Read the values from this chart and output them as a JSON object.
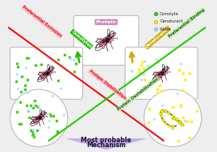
{
  "bg_color": "#eeeeee",
  "osmolyte_color": "#33cc00",
  "denaturant_color": "#ffee00",
  "water_color": "#99ddff",
  "protein_color1": "#111111",
  "protein_color2": "#cc2222",
  "protein_color3": "#ee66aa",
  "legend_osmolyte": "Osmolyte",
  "legend_denaturant": "Denaturant",
  "legend_water": "Water",
  "bottom_text1": "Most probable",
  "bottom_text2": "Mechanism",
  "top_protein_label": "Protein",
  "label_exclusion": "Preferential Exclusion",
  "label_binding": "Preferential Binding",
  "label_stabilization": "Protein Stabilization",
  "label_destabilization": "Protein Destabilization",
  "label_osmolytes": "Osmolytes",
  "label_denaturants": "Denaturants",
  "triangle_color": "#c0b0e8",
  "green_arrow_color": "#22bb00",
  "yellow_arrow_color": "#ccaa00",
  "red_line_color": "#ee1111",
  "green_line_color": "#22cc00",
  "pink_bg": "#f5c5d5",
  "green_bg": "#d0f0c0",
  "box_edge": "#bbbbbb",
  "box_face": "#ffffff"
}
